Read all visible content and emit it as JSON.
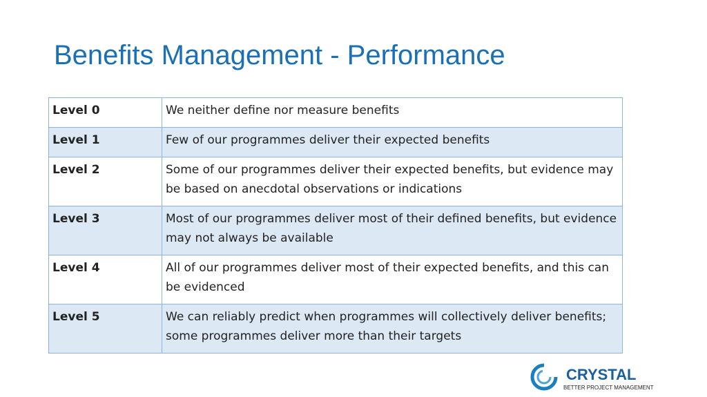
{
  "header": {
    "title": "Benefits Management - Performance"
  },
  "table": {
    "rows": [
      [
        "Level 0",
        "We neither define nor measure benefits"
      ],
      [
        "Level 1",
        "Few of our programmes deliver their expected benefits"
      ],
      [
        "Level 2",
        "Some of our programmes deliver their expected benefits, but evidence may be based on anecdotal observations or indications"
      ],
      [
        "Level 3",
        "Most of our programmes deliver most of their defined benefits, but evidence may not always be available"
      ],
      [
        "Level 4",
        "All of our programmes deliver most of their expected benefits, and this can be evidenced"
      ],
      [
        "Level 5",
        "We can reliably predict when programmes will collectively deliver benefits; some programmes deliver more than their targets"
      ]
    ]
  },
  "logo": {
    "name": "CRYSTAL",
    "tagline": "BETTER PROJECT MANAGEMENT"
  }
}
